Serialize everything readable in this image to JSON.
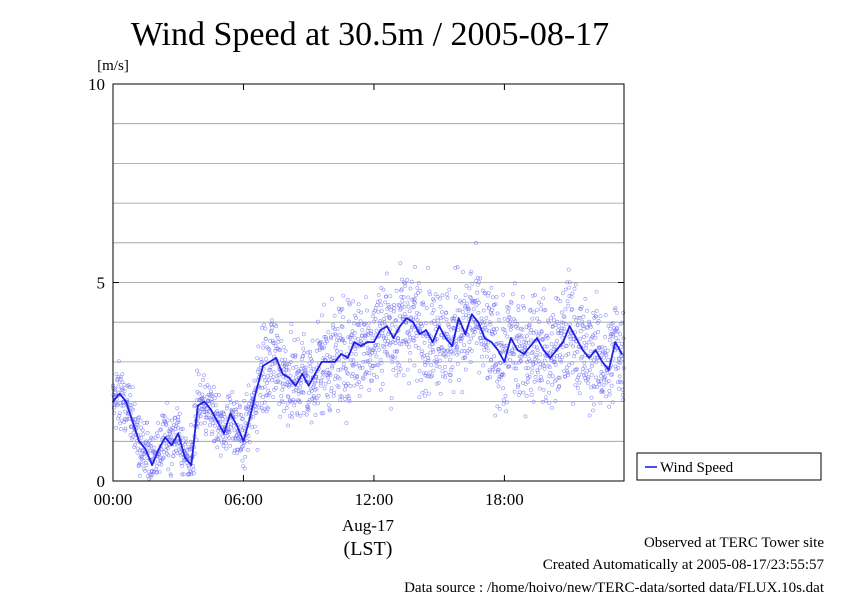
{
  "colors": {
    "series": "#1f1fe6",
    "points": "#6f6ff5",
    "grid": "#9a9a9a"
  },
  "footer": {
    "line1": "Observed at TERC Tower site",
    "line2": "Created Automatically at 2005-08-17/23:55:57",
    "line3": "Data source : /home/hoivo/new/TERC-data/sorted  data/FLUX.10s.dat"
  },
  "chart_data": {
    "type": "line",
    "title": "Wind Speed at 30.5m / 2005-08-17",
    "ylabel": "[m/s]",
    "xlabel_date": "Aug-17",
    "xlabel_unit": "(LST)",
    "x_unit": "hours",
    "xlim": [
      0,
      23.5
    ],
    "ylim": [
      0,
      10
    ],
    "x_ticks": [
      {
        "value": 0,
        "label": "00:00"
      },
      {
        "value": 6,
        "label": "06:00"
      },
      {
        "value": 12,
        "label": "12:00"
      },
      {
        "value": 18,
        "label": "18:00"
      }
    ],
    "y_ticks": [
      {
        "value": 0,
        "label": "0"
      },
      {
        "value": 5,
        "label": "5"
      },
      {
        "value": 10,
        "label": "10"
      }
    ],
    "grid": true,
    "legend_position": "right-bottom",
    "series": [
      {
        "name": "Wind Speed",
        "style": "line with scatter of raw samples",
        "x": [
          0.0,
          0.3,
          0.6,
          0.9,
          1.2,
          1.5,
          1.8,
          2.1,
          2.4,
          2.7,
          3.0,
          3.3,
          3.6,
          3.9,
          4.2,
          4.5,
          4.8,
          5.1,
          5.4,
          5.7,
          6.0,
          6.3,
          6.6,
          6.9,
          7.2,
          7.5,
          7.8,
          8.1,
          8.4,
          8.7,
          9.0,
          9.3,
          9.6,
          9.9,
          10.2,
          10.5,
          10.8,
          11.1,
          11.4,
          11.7,
          12.0,
          12.3,
          12.6,
          12.9,
          13.2,
          13.5,
          13.8,
          14.1,
          14.4,
          14.7,
          15.0,
          15.3,
          15.6,
          15.9,
          16.2,
          16.5,
          16.8,
          17.1,
          17.4,
          17.7,
          18.0,
          18.3,
          18.6,
          18.9,
          19.2,
          19.5,
          19.8,
          20.1,
          20.4,
          20.7,
          21.0,
          21.3,
          21.6,
          21.9,
          22.2,
          22.5,
          22.8,
          23.1,
          23.4
        ],
        "y": [
          2.0,
          2.2,
          2.0,
          1.5,
          1.0,
          0.8,
          0.4,
          0.8,
          1.1,
          0.9,
          1.2,
          0.6,
          0.4,
          1.9,
          2.0,
          1.8,
          1.5,
          1.2,
          1.7,
          1.4,
          1.0,
          1.6,
          2.3,
          2.9,
          3.0,
          3.1,
          2.7,
          2.6,
          2.4,
          2.7,
          2.4,
          2.7,
          3.0,
          3.0,
          3.0,
          3.2,
          3.1,
          3.5,
          3.4,
          3.5,
          3.5,
          3.8,
          3.9,
          3.6,
          3.9,
          4.1,
          4.0,
          3.7,
          3.8,
          3.5,
          3.9,
          3.6,
          3.4,
          4.1,
          3.7,
          4.2,
          4.0,
          3.6,
          3.5,
          3.3,
          3.0,
          3.6,
          3.3,
          3.2,
          3.4,
          3.6,
          3.3,
          3.1,
          3.3,
          3.5,
          3.9,
          3.6,
          3.3,
          3.1,
          3.3,
          3.0,
          2.8,
          3.5,
          3.2
        ]
      }
    ]
  }
}
